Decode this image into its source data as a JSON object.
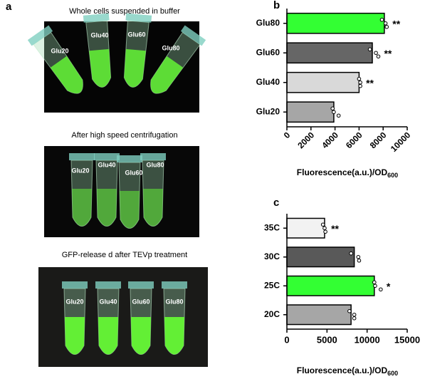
{
  "panel_a": {
    "label": "a",
    "photos": [
      {
        "caption": "Whole cells suspended in buffer",
        "labels": [
          "Glu20",
          "Glu40",
          "Glu60",
          "Glu80"
        ]
      },
      {
        "caption": "After high speed centrifugation",
        "labels": [
          "Glu20",
          "Glu40",
          "Glu60",
          "Glu80"
        ]
      },
      {
        "caption": "GFP-release d after TEVp treatment",
        "labels": [
          "Glu20",
          "Glu40",
          "Glu60",
          "Glu80"
        ]
      }
    ]
  },
  "chart_data": [
    {
      "type": "barh",
      "panel": "b",
      "categories": [
        "Glu80",
        "Glu60",
        "Glu40",
        "Glu20"
      ],
      "values": [
        8100,
        7100,
        6000,
        3900
      ],
      "colors": [
        "#33ff33",
        "#666666",
        "#d9d9d9",
        "#a6a6a6"
      ],
      "points": [
        [
          7900,
          8200,
          8300
        ],
        [
          6900,
          7400,
          7600
        ],
        [
          6000,
          6100,
          6100
        ],
        [
          3800,
          3900,
          4300
        ]
      ],
      "annotations": [
        "**",
        "**",
        "**",
        null
      ],
      "xlim": [
        0,
        10000
      ],
      "xticks": [
        0,
        2000,
        4000,
        6000,
        8000,
        10000
      ],
      "xlabel": "Fluorescence(a.u.)/OD",
      "xlabel_sub": "600",
      "rotate_ticks": true
    },
    {
      "type": "barh",
      "panel": "c",
      "categories": [
        "35C",
        "30C",
        "25C",
        "20C"
      ],
      "values": [
        4700,
        8400,
        10900,
        8000
      ],
      "colors": [
        "#f2f2f2",
        "#595959",
        "#33ff33",
        "#a6a6a6"
      ],
      "points": [
        [
          4500,
          4700,
          4800
        ],
        [
          8000,
          8900,
          9000
        ],
        [
          10900,
          11000,
          11700
        ],
        [
          7800,
          8400,
          8400
        ]
      ],
      "annotations": [
        "**",
        null,
        "*",
        null
      ],
      "xlim": [
        0,
        15000
      ],
      "xticks": [
        0,
        5000,
        10000,
        15000
      ],
      "xlabel": "Fluorescence(a.u.)/OD",
      "xlabel_sub": "600",
      "rotate_ticks": false
    }
  ]
}
